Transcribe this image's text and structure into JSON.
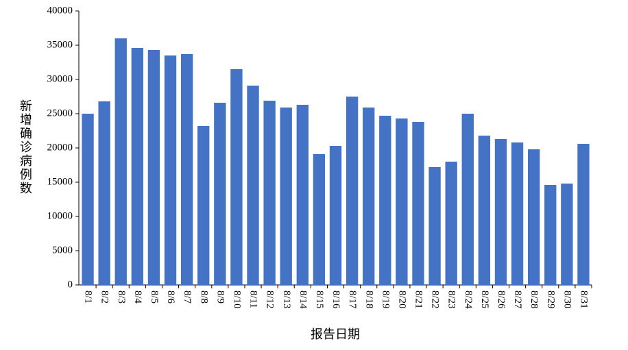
{
  "chart_data": {
    "type": "bar",
    "x_label": "报告日期",
    "y_label": "新增确诊病例数",
    "categories": [
      "8/1",
      "8/2",
      "8/3",
      "8/4",
      "8/5",
      "8/6",
      "8/7",
      "8/8",
      "8/9",
      "8/10",
      "8/11",
      "8/12",
      "8/13",
      "8/14",
      "8/15",
      "8/16",
      "8/17",
      "8/18",
      "8/19",
      "8/20",
      "8/21",
      "8/22",
      "8/23",
      "8/24",
      "8/25",
      "8/26",
      "8/27",
      "8/28",
      "8/29",
      "8/30",
      "8/31"
    ],
    "values": [
      25000,
      26800,
      36000,
      34600,
      34300,
      33500,
      33700,
      23200,
      26600,
      31500,
      29100,
      26900,
      25900,
      26300,
      19100,
      20300,
      27500,
      25900,
      24700,
      24300,
      23800,
      17200,
      18000,
      25000,
      21800,
      21300,
      20800,
      19800,
      14600,
      14800,
      20600
    ],
    "color": "#4472c4",
    "ylim": [
      0,
      40000
    ],
    "yticks": [
      0,
      5000,
      10000,
      15000,
      20000,
      25000,
      30000,
      35000,
      40000
    ],
    "grid": false
  }
}
